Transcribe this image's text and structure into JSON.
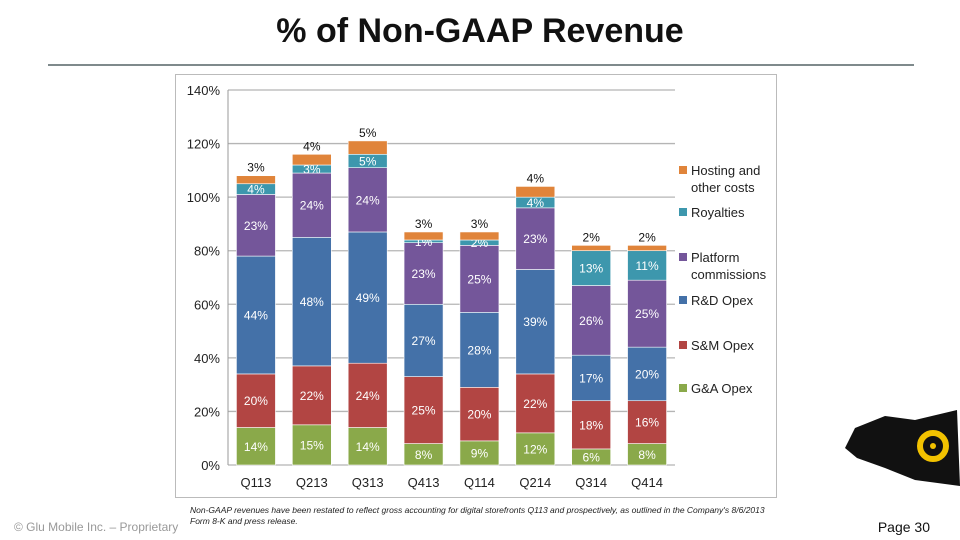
{
  "title": "% of Non-GAAP Revenue",
  "footnote": "Non-GAAP revenues have been restated to reflect gross accounting for digital storefronts Q113 and prospectively, as outlined in the Company's 8/6/2013 Form 8-K and press release.",
  "copyright": "© Glu Mobile Inc. – Proprietary",
  "page_number": "Page 30",
  "chart_data": {
    "type": "bar",
    "stacked": true,
    "title": "% of Non-GAAP Revenue",
    "xlabel": "",
    "ylabel": "",
    "ylim": [
      0,
      140
    ],
    "yticks": [
      0,
      20,
      40,
      60,
      80,
      100,
      120,
      140
    ],
    "ytick_labels": [
      "0%",
      "20%",
      "40%",
      "60%",
      "80%",
      "100%",
      "120%",
      "140%"
    ],
    "grid": true,
    "legend_position": "right",
    "categories": [
      "Q113",
      "Q213",
      "Q313",
      "Q413",
      "Q114",
      "Q214",
      "Q314",
      "Q414"
    ],
    "series": [
      {
        "name": "G&A Opex",
        "color": "#8aa94a",
        "values": [
          14,
          15,
          14,
          8,
          9,
          12,
          6,
          8
        ]
      },
      {
        "name": "S&M Opex",
        "color": "#b24543",
        "values": [
          20,
          22,
          24,
          25,
          20,
          22,
          18,
          16
        ]
      },
      {
        "name": "R&D Opex",
        "color": "#4471a8",
        "values": [
          44,
          48,
          49,
          27,
          28,
          39,
          17,
          20
        ]
      },
      {
        "name": "Platform commissions",
        "color": "#74569a",
        "values": [
          23,
          24,
          24,
          23,
          25,
          23,
          26,
          25
        ]
      },
      {
        "name": "Royalties",
        "color": "#3d97ad",
        "values": [
          4,
          3,
          5,
          1,
          2,
          4,
          13,
          11
        ]
      },
      {
        "name": "Hosting and other costs",
        "color": "#e0843a",
        "values": [
          3,
          4,
          5,
          3,
          3,
          4,
          2,
          2
        ]
      }
    ]
  }
}
